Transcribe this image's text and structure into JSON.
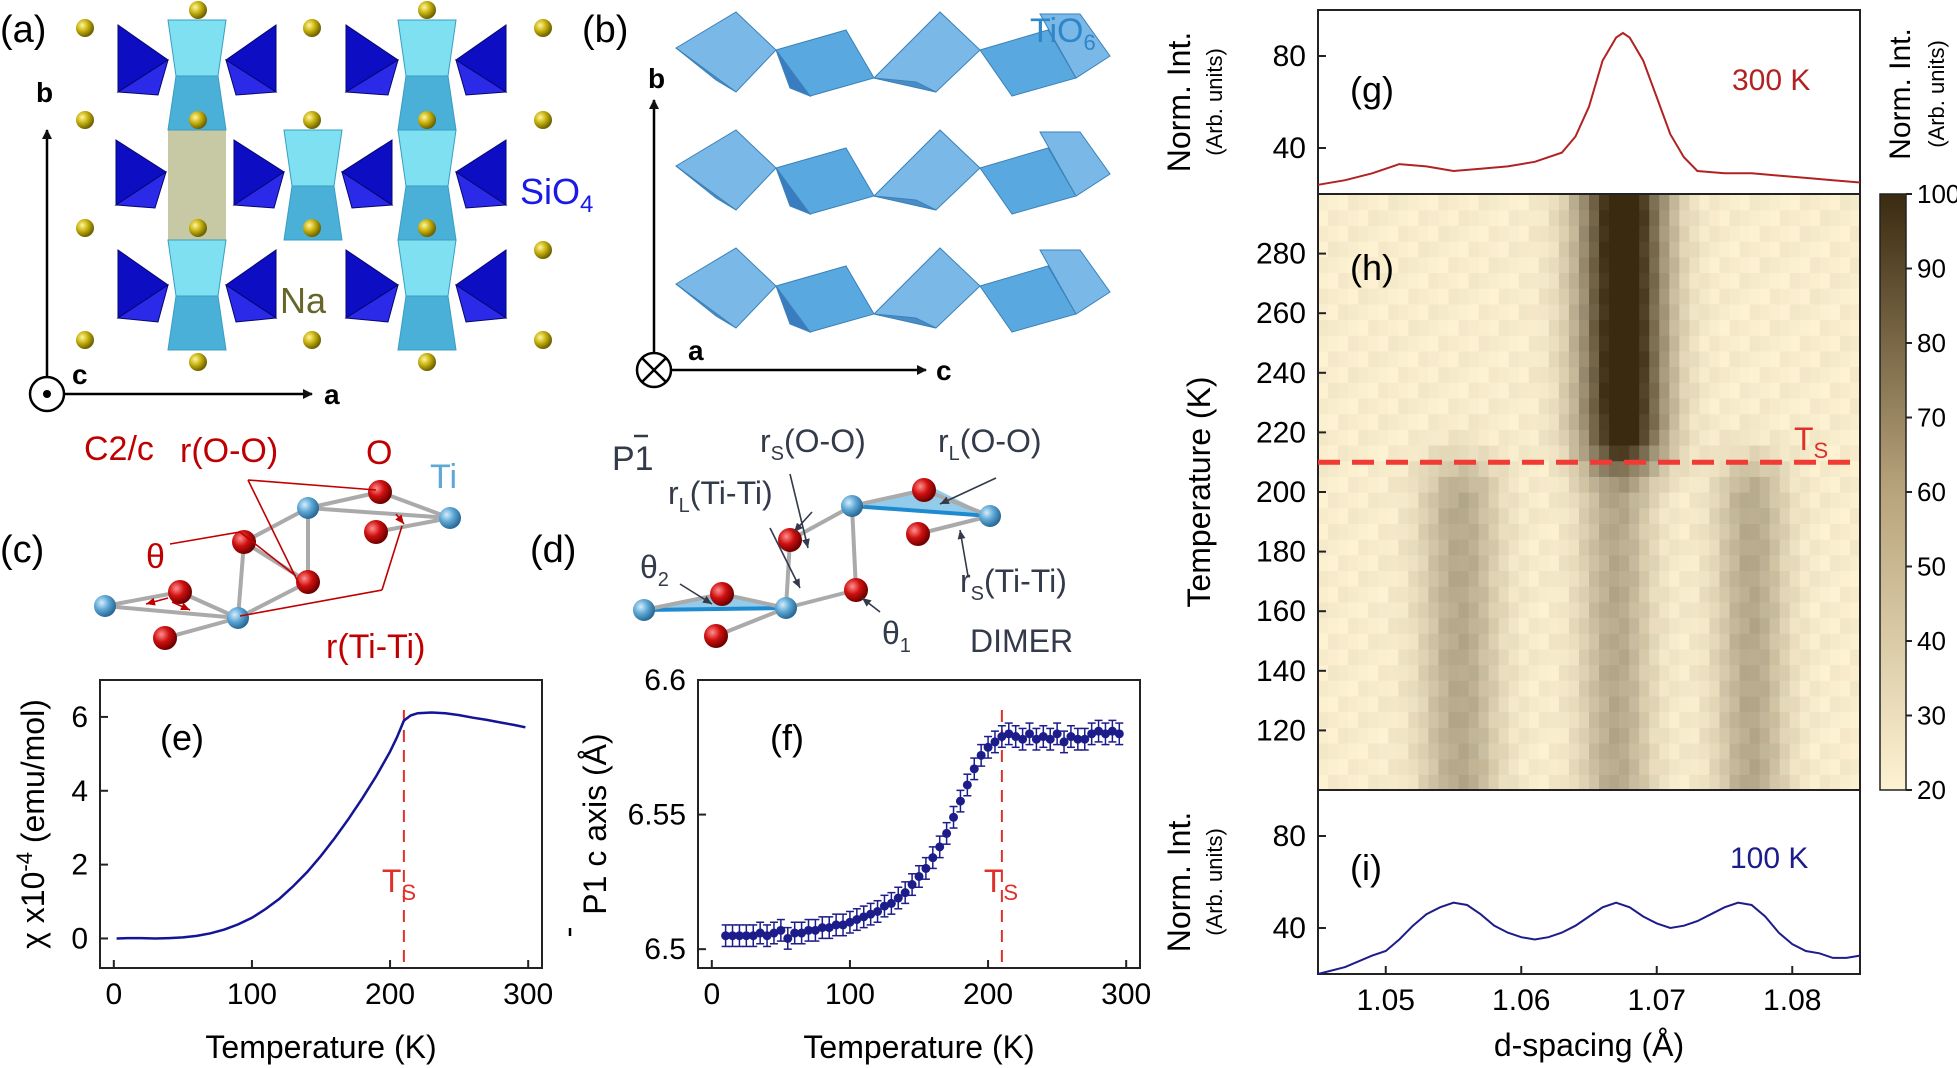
{
  "colors": {
    "red": "#c00000",
    "blue": "#1a1ae6",
    "dark_blue": "#14149a",
    "na_olive": "#66662a",
    "tio6_blue": "#2e86c8",
    "ti_ball": "#5ea8d6",
    "o_ball": "#d21010",
    "na_ball": "#b8a400",
    "tetra": "#0d0dc4",
    "octa_light": "#7fe0f2",
    "octa_mid": "#4ab0d8",
    "octa_b": "#5aa8e0",
    "line_300": "#b22222",
    "line_100": "#1c1c8a",
    "chi_line": "#141496",
    "pc_marker": "#1c1c8a",
    "ts_red": "#e0302a",
    "heat_low": "#fdf2d2",
    "heat_high": "#3a2a10",
    "axis": "#222222",
    "label_dark": "#333a4a"
  },
  "panels": {
    "a": {
      "tag": "(a)",
      "axis_b": "b",
      "axis_a": "a",
      "axis_c": "c",
      "tetra_label": "SiO",
      "tetra_sub": "4",
      "na_label": "Na"
    },
    "b": {
      "tag": "(b)",
      "oct_label": "TiO",
      "oct_sub": "6",
      "axis_b": "b",
      "axis_a": "a",
      "axis_c": "c"
    },
    "c": {
      "tag": "(c)",
      "group": "C2/c",
      "r_oo": "r(O-O)",
      "o_label": "O",
      "ti_label": "Ti",
      "theta": "θ",
      "r_titi": "r(Ti-Ti)"
    },
    "d": {
      "tag": "(d)",
      "group": "P1",
      "rs_oo_pre": "r",
      "rs_oo_sub": "S",
      "rs_oo_post": "(O-O)",
      "rl_oo_pre": "r",
      "rl_oo_sub": "L",
      "rl_oo_post": "(O-O)",
      "rl_titi_pre": "r",
      "rl_titi_sub": "L",
      "rl_titi_post": "(Ti-Ti)",
      "theta2_pre": "θ",
      "theta2_sub": "2",
      "theta1_pre": "θ",
      "theta1_sub": "1",
      "rs_titi_pre": "r",
      "rs_titi_sub": "S",
      "rs_titi_post": "(Ti-Ti)",
      "dimer": "DIMER"
    }
  },
  "chart_data": [
    {
      "id": "e",
      "type": "line",
      "tag": "(e)",
      "xlabel": "Temperature (K)",
      "ylabel_pre": "χ x10",
      "ylabel_sup": "-4",
      "ylabel_post": " (emu/mol)",
      "xlim": [
        -10,
        310
      ],
      "ylim": [
        -0.8,
        7.0
      ],
      "xticks": [
        "0",
        "100",
        "200",
        "300"
      ],
      "xtick_values": [
        0,
        100,
        200,
        300
      ],
      "yticks": [
        "0",
        "2",
        "4",
        "6"
      ],
      "ytick_values": [
        0,
        2,
        4,
        6
      ],
      "ts_label": "T",
      "ts_sub": "S",
      "ts_value": 210,
      "x": [
        2,
        10,
        20,
        30,
        40,
        50,
        60,
        70,
        80,
        90,
        100,
        110,
        120,
        130,
        140,
        150,
        160,
        170,
        180,
        190,
        200,
        205,
        210,
        215,
        220,
        230,
        240,
        250,
        260,
        270,
        280,
        290,
        298
      ],
      "y": [
        0,
        0.01,
        0.01,
        0.0,
        0.01,
        0.03,
        0.07,
        0.14,
        0.24,
        0.38,
        0.56,
        0.8,
        1.08,
        1.42,
        1.8,
        2.24,
        2.72,
        3.24,
        3.8,
        4.4,
        5.06,
        5.45,
        5.9,
        6.04,
        6.1,
        6.12,
        6.1,
        6.05,
        5.98,
        5.92,
        5.85,
        5.78,
        5.72
      ]
    },
    {
      "id": "f",
      "type": "scatter",
      "tag": "(f)",
      "xlabel": "Temperature (K)",
      "ylabel_pre": "P1",
      "ylabel_post": " c axis (Å)",
      "xlim": [
        -10,
        310
      ],
      "ylim": [
        6.493,
        6.6
      ],
      "xticks": [
        "0",
        "100",
        "200",
        "300"
      ],
      "xtick_values": [
        0,
        100,
        200,
        300
      ],
      "yticks": [
        "6.5",
        "6.55",
        "6.6"
      ],
      "ytick_values": [
        6.5,
        6.55,
        6.6
      ],
      "ts_label": "T",
      "ts_sub": "S",
      "ts_value": 210,
      "error": 0.004,
      "x": [
        10,
        15,
        20,
        25,
        30,
        35,
        40,
        45,
        50,
        55,
        60,
        65,
        70,
        75,
        80,
        85,
        90,
        95,
        100,
        105,
        110,
        115,
        120,
        125,
        130,
        135,
        140,
        145,
        150,
        155,
        160,
        165,
        170,
        175,
        180,
        185,
        190,
        195,
        200,
        205,
        210,
        215,
        220,
        225,
        230,
        235,
        240,
        245,
        250,
        255,
        260,
        265,
        270,
        275,
        280,
        285,
        290,
        295
      ],
      "y": [
        6.505,
        6.505,
        6.505,
        6.505,
        6.505,
        6.506,
        6.505,
        6.506,
        6.507,
        6.504,
        6.506,
        6.506,
        6.507,
        6.507,
        6.508,
        6.508,
        6.509,
        6.509,
        6.51,
        6.511,
        6.512,
        6.513,
        6.514,
        6.516,
        6.517,
        6.519,
        6.521,
        6.524,
        6.527,
        6.53,
        6.534,
        6.538,
        6.543,
        6.549,
        6.555,
        6.561,
        6.567,
        6.572,
        6.575,
        6.577,
        6.579,
        6.58,
        6.579,
        6.578,
        6.58,
        6.578,
        6.579,
        6.578,
        6.58,
        6.577,
        6.579,
        6.578,
        6.578,
        6.58,
        6.581,
        6.58,
        6.581,
        6.58
      ]
    },
    {
      "id": "g",
      "type": "line",
      "tag": "(g)",
      "label": "300 K",
      "ylabel": "Norm. Int.",
      "ylabel2": "(Arb. units)",
      "xlim": [
        1.045,
        1.085
      ],
      "ylim": [
        20,
        100
      ],
      "yticks": [
        "40",
        "80"
      ],
      "ytick_values": [
        40,
        80
      ],
      "x": [
        1.045,
        1.047,
        1.049,
        1.051,
        1.053,
        1.055,
        1.057,
        1.059,
        1.061,
        1.063,
        1.064,
        1.065,
        1.066,
        1.067,
        1.0675,
        1.068,
        1.069,
        1.07,
        1.071,
        1.072,
        1.073,
        1.075,
        1.077,
        1.079,
        1.081,
        1.083,
        1.085
      ],
      "y": [
        24,
        26,
        29,
        33,
        32,
        30,
        31,
        32,
        34,
        38,
        45,
        58,
        78,
        88,
        90,
        88,
        78,
        62,
        46,
        36,
        30,
        29,
        29,
        28,
        27,
        26,
        25
      ]
    },
    {
      "id": "h",
      "type": "heatmap",
      "tag": "(h)",
      "ylabel": "Temperature (K)",
      "xlim": [
        1.045,
        1.085
      ],
      "ylim": [
        100,
        300
      ],
      "yticks": [
        "120",
        "140",
        "160",
        "180",
        "200",
        "220",
        "240",
        "260",
        "280"
      ],
      "ytick_values": [
        120,
        140,
        160,
        180,
        200,
        220,
        240,
        260,
        280
      ],
      "ts_label": "T",
      "ts_sub": "S",
      "ts_value": 210,
      "colorbar_label": "Norm. Int.",
      "colorbar_label2": "(Arb. units)",
      "colorbar_ticks": [
        "20",
        "30",
        "40",
        "50",
        "60",
        "70",
        "80",
        "90",
        "100"
      ],
      "colorbar_values": [
        20,
        30,
        40,
        50,
        60,
        70,
        80,
        90,
        100
      ],
      "high_T_peak": {
        "center": 1.0675,
        "width": 0.0022,
        "amplitude": 90
      },
      "low_T_peaks": [
        {
          "center": 1.0555,
          "width": 0.002,
          "amplitude": 50
        },
        {
          "center": 1.067,
          "width": 0.0018,
          "amplitude": 50
        },
        {
          "center": 1.077,
          "width": 0.0018,
          "amplitude": 50
        }
      ],
      "background": 22
    },
    {
      "id": "i",
      "type": "line",
      "tag": "(i)",
      "label": "100 K",
      "ylabel": "Norm. Int.",
      "ylabel2": "(Arb. units)",
      "xlabel": "d-spacing (Å)",
      "xlim": [
        1.045,
        1.085
      ],
      "ylim": [
        20,
        100
      ],
      "xticks": [
        "1.05",
        "1.06",
        "1.07",
        "1.08"
      ],
      "xtick_values": [
        1.05,
        1.06,
        1.07,
        1.08
      ],
      "yticks": [
        "40",
        "80"
      ],
      "ytick_values": [
        40,
        80
      ],
      "x": [
        1.045,
        1.047,
        1.049,
        1.05,
        1.051,
        1.052,
        1.053,
        1.054,
        1.055,
        1.056,
        1.057,
        1.058,
        1.059,
        1.06,
        1.061,
        1.062,
        1.063,
        1.064,
        1.065,
        1.066,
        1.067,
        1.068,
        1.069,
        1.07,
        1.071,
        1.072,
        1.073,
        1.074,
        1.075,
        1.076,
        1.077,
        1.078,
        1.079,
        1.08,
        1.081,
        1.082,
        1.083,
        1.084,
        1.085
      ],
      "y": [
        20,
        23,
        28,
        30,
        35,
        41,
        46,
        49,
        51,
        50,
        46,
        41,
        38,
        36,
        35,
        36,
        38,
        41,
        45,
        49,
        51,
        49,
        45,
        42,
        40,
        41,
        43,
        46,
        49,
        51,
        50,
        45,
        38,
        33,
        30,
        29,
        27,
        27,
        28
      ]
    }
  ]
}
